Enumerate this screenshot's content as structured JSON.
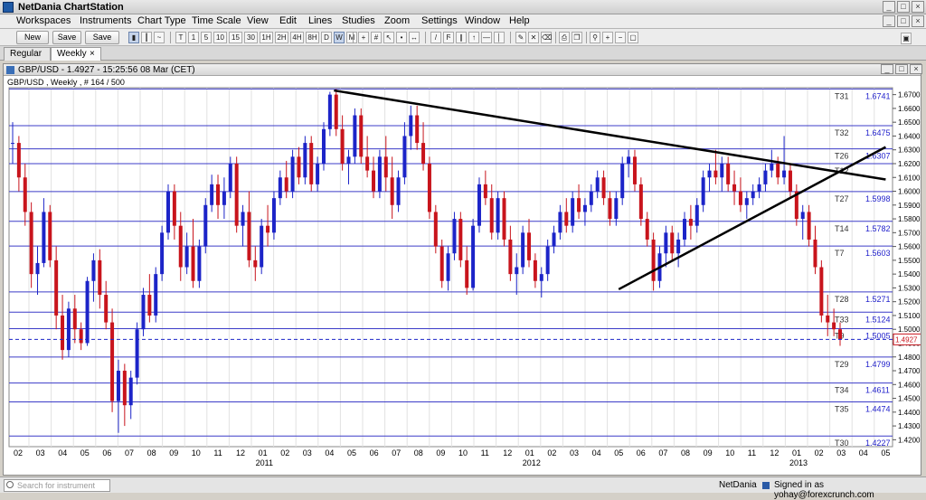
{
  "app": {
    "title": "NetDania ChartStation"
  },
  "window_buttons": [
    "_",
    "□",
    "×"
  ],
  "menu": [
    "Workspaces",
    "Instruments",
    "Chart Type",
    "Time Scale",
    "View",
    "Edit",
    "Lines",
    "Studies",
    "Zoom",
    "Settings",
    "Window",
    "Help"
  ],
  "toolbar": {
    "new_label": "New",
    "save_label": "Save",
    "save_as_label": "Save as..",
    "timeframes": [
      "T",
      "1",
      "5",
      "10",
      "15",
      "30",
      "1H",
      "2H",
      "4H",
      "8H",
      "D",
      "W",
      "M"
    ],
    "active_timeframe": "W"
  },
  "tabs": [
    {
      "label": "Regular",
      "active": false
    },
    {
      "label": "Weekly",
      "active": true,
      "close": "×"
    }
  ],
  "chart_window": {
    "header": "GBP/USD - 1.4927 - 15:25:56  08 Mar (CET)",
    "subtitle": "GBP/USD , Weekly , # 164 / 500"
  },
  "chart_data": {
    "type": "candlestick",
    "instrument": "GBP/USD",
    "interval": "Weekly",
    "last_price": "1.4927",
    "ylim": [
      1.415,
      1.675
    ],
    "yticks": [
      "1.6700",
      "1.6600",
      "1.6500",
      "1.6400",
      "1.6300",
      "1.6200",
      "1.6100",
      "1.6000",
      "1.5900",
      "1.5800",
      "1.5700",
      "1.5600",
      "1.5500",
      "1.5400",
      "1.5300",
      "1.5200",
      "1.5100",
      "1.5000",
      "1.4900",
      "1.4800",
      "1.4700",
      "1.4600",
      "1.4500",
      "1.4400",
      "1.4300",
      "1.4200"
    ],
    "x_month_labels": [
      "02",
      "03",
      "04",
      "05",
      "06",
      "07",
      "08",
      "09",
      "10",
      "11",
      "12",
      "01",
      "02",
      "03",
      "04",
      "05",
      "06",
      "07",
      "08",
      "09",
      "10",
      "11",
      "12",
      "01",
      "02",
      "03",
      "04",
      "05",
      "06",
      "07",
      "08",
      "09",
      "10",
      "11",
      "12",
      "01",
      "02",
      "03",
      "04",
      "05"
    ],
    "x_year_labels": [
      {
        "label": "2011",
        "month_index": 11
      },
      {
        "label": "2012",
        "month_index": 23
      },
      {
        "label": "2013",
        "month_index": 35
      }
    ],
    "horizontal_levels": [
      {
        "tag": "T31",
        "value": 1.6741,
        "label": "1.6741"
      },
      {
        "tag": "T32",
        "value": 1.6475,
        "label": "1.6475"
      },
      {
        "tag": "T26",
        "value": 1.6307,
        "label": "1.6307"
      },
      {
        "tag": "T12",
        "value": 1.62,
        "label": ""
      },
      {
        "tag": "T27",
        "value": 1.5998,
        "label": "1.5998"
      },
      {
        "tag": "T14",
        "value": 1.5782,
        "label": "1.5782"
      },
      {
        "tag": "T7",
        "value": 1.5603,
        "label": "1.5603"
      },
      {
        "tag": "T28",
        "value": 1.5271,
        "label": "1.5271"
      },
      {
        "tag": "T33",
        "value": 1.5124,
        "label": "1.5124"
      },
      {
        "tag": "T9",
        "value": 1.5005,
        "label": "1.5005"
      },
      {
        "tag": "T29",
        "value": 1.4799,
        "label": "1.4799"
      },
      {
        "tag": "T34",
        "value": 1.4611,
        "label": "1.4611"
      },
      {
        "tag": "T35",
        "value": 1.4474,
        "label": "1.4474"
      },
      {
        "tag": "T30",
        "value": 1.4227,
        "label": "1.4227"
      }
    ],
    "trendlines": [
      {
        "name": "downtrend",
        "from": {
          "month_index": 14.2,
          "price": 1.673
        },
        "to": {
          "month_index": 39.0,
          "price": 1.6085
        }
      },
      {
        "name": "uptrend",
        "from": {
          "month_index": 27.0,
          "price": 1.529
        },
        "to": {
          "month_index": 39.0,
          "price": 1.632
        }
      }
    ],
    "candles": [
      [
        1.635,
        1.65,
        1.62,
        1.635
      ],
      [
        1.635,
        1.64,
        1.6,
        1.61
      ],
      [
        1.61,
        1.62,
        1.575,
        1.585
      ],
      [
        1.585,
        1.592,
        1.53,
        1.54
      ],
      [
        1.54,
        1.56,
        1.525,
        1.548
      ],
      [
        1.548,
        1.595,
        1.545,
        1.585
      ],
      [
        1.585,
        1.59,
        1.545,
        1.55
      ],
      [
        1.55,
        1.56,
        1.5,
        1.51
      ],
      [
        1.51,
        1.525,
        1.478,
        1.485
      ],
      [
        1.485,
        1.52,
        1.48,
        1.515
      ],
      [
        1.515,
        1.525,
        1.49,
        1.5
      ],
      [
        1.5,
        1.505,
        1.485,
        1.49
      ],
      [
        1.49,
        1.538,
        1.488,
        1.535
      ],
      [
        1.535,
        1.555,
        1.52,
        1.55
      ],
      [
        1.55,
        1.558,
        1.515,
        1.525
      ],
      [
        1.525,
        1.535,
        1.5,
        1.505
      ],
      [
        1.505,
        1.515,
        1.44,
        1.448
      ],
      [
        1.448,
        1.478,
        1.425,
        1.47
      ],
      [
        1.47,
        1.475,
        1.43,
        1.445
      ],
      [
        1.445,
        1.47,
        1.435,
        1.465
      ],
      [
        1.465,
        1.505,
        1.46,
        1.5
      ],
      [
        1.5,
        1.53,
        1.495,
        1.525
      ],
      [
        1.525,
        1.54,
        1.505,
        1.51
      ],
      [
        1.51,
        1.545,
        1.505,
        1.54
      ],
      [
        1.54,
        1.575,
        1.535,
        1.57
      ],
      [
        1.57,
        1.605,
        1.565,
        1.6
      ],
      [
        1.6,
        1.605,
        1.565,
        1.575
      ],
      [
        1.575,
        1.585,
        1.535,
        1.545
      ],
      [
        1.545,
        1.57,
        1.54,
        1.56
      ],
      [
        1.56,
        1.58,
        1.53,
        1.535
      ],
      [
        1.535,
        1.565,
        1.53,
        1.56
      ],
      [
        1.56,
        1.595,
        1.555,
        1.59
      ],
      [
        1.59,
        1.612,
        1.585,
        1.605
      ],
      [
        1.605,
        1.612,
        1.58,
        1.59
      ],
      [
        1.59,
        1.61,
        1.58,
        1.6
      ],
      [
        1.6,
        1.625,
        1.595,
        1.62
      ],
      [
        1.62,
        1.625,
        1.57,
        1.575
      ],
      [
        1.575,
        1.59,
        1.56,
        1.585
      ],
      [
        1.585,
        1.6,
        1.545,
        1.55
      ],
      [
        1.55,
        1.56,
        1.535,
        1.545
      ],
      [
        1.545,
        1.58,
        1.54,
        1.575
      ],
      [
        1.575,
        1.59,
        1.56,
        1.57
      ],
      [
        1.57,
        1.6,
        1.565,
        1.595
      ],
      [
        1.595,
        1.615,
        1.59,
        1.61
      ],
      [
        1.61,
        1.622,
        1.595,
        1.6
      ],
      [
        1.6,
        1.63,
        1.595,
        1.625
      ],
      [
        1.625,
        1.632,
        1.605,
        1.61
      ],
      [
        1.61,
        1.64,
        1.605,
        1.635
      ],
      [
        1.635,
        1.64,
        1.6,
        1.605
      ],
      [
        1.605,
        1.625,
        1.6,
        1.62
      ],
      [
        1.62,
        1.65,
        1.615,
        1.645
      ],
      [
        1.645,
        1.672,
        1.64,
        1.67
      ],
      [
        1.67,
        1.674,
        1.64,
        1.645
      ],
      [
        1.645,
        1.655,
        1.615,
        1.62
      ],
      [
        1.62,
        1.63,
        1.605,
        1.625
      ],
      [
        1.625,
        1.66,
        1.62,
        1.655
      ],
      [
        1.655,
        1.66,
        1.62,
        1.625
      ],
      [
        1.625,
        1.64,
        1.61,
        1.615
      ],
      [
        1.615,
        1.625,
        1.595,
        1.6
      ],
      [
        1.6,
        1.63,
        1.595,
        1.625
      ],
      [
        1.625,
        1.64,
        1.6,
        1.61
      ],
      [
        1.61,
        1.625,
        1.58,
        1.59
      ],
      [
        1.59,
        1.615,
        1.585,
        1.61
      ],
      [
        1.61,
        1.65,
        1.605,
        1.64
      ],
      [
        1.64,
        1.662,
        1.63,
        1.655
      ],
      [
        1.655,
        1.662,
        1.63,
        1.635
      ],
      [
        1.635,
        1.65,
        1.615,
        1.62
      ],
      [
        1.62,
        1.625,
        1.58,
        1.585
      ],
      [
        1.585,
        1.59,
        1.555,
        1.56
      ],
      [
        1.56,
        1.565,
        1.53,
        1.535
      ],
      [
        1.535,
        1.56,
        1.528,
        1.555
      ],
      [
        1.555,
        1.585,
        1.55,
        1.58
      ],
      [
        1.58,
        1.585,
        1.545,
        1.55
      ],
      [
        1.55,
        1.56,
        1.525,
        1.53
      ],
      [
        1.53,
        1.58,
        1.528,
        1.575
      ],
      [
        1.575,
        1.61,
        1.57,
        1.605
      ],
      [
        1.605,
        1.615,
        1.59,
        1.595
      ],
      [
        1.595,
        1.605,
        1.565,
        1.57
      ],
      [
        1.57,
        1.6,
        1.565,
        1.595
      ],
      [
        1.595,
        1.6,
        1.56,
        1.565
      ],
      [
        1.565,
        1.575,
        1.535,
        1.54
      ],
      [
        1.54,
        1.555,
        1.525,
        1.545
      ],
      [
        1.545,
        1.575,
        1.54,
        1.57
      ],
      [
        1.57,
        1.58,
        1.545,
        1.55
      ],
      [
        1.55,
        1.555,
        1.53,
        1.535
      ],
      [
        1.535,
        1.545,
        1.523,
        1.54
      ],
      [
        1.54,
        1.565,
        1.535,
        1.56
      ],
      [
        1.56,
        1.575,
        1.555,
        1.57
      ],
      [
        1.57,
        1.59,
        1.565,
        1.585
      ],
      [
        1.585,
        1.595,
        1.57,
        1.575
      ],
      [
        1.575,
        1.6,
        1.57,
        1.595
      ],
      [
        1.595,
        1.605,
        1.58,
        1.585
      ],
      [
        1.585,
        1.595,
        1.575,
        1.59
      ],
      [
        1.59,
        1.605,
        1.585,
        1.6
      ],
      [
        1.6,
        1.615,
        1.595,
        1.61
      ],
      [
        1.61,
        1.615,
        1.59,
        1.595
      ],
      [
        1.595,
        1.6,
        1.575,
        1.58
      ],
      [
        1.58,
        1.6,
        1.575,
        1.595
      ],
      [
        1.595,
        1.625,
        1.59,
        1.62
      ],
      [
        1.62,
        1.63,
        1.61,
        1.625
      ],
      [
        1.625,
        1.63,
        1.6,
        1.605
      ],
      [
        1.605,
        1.61,
        1.575,
        1.58
      ],
      [
        1.58,
        1.585,
        1.56,
        1.565
      ],
      [
        1.565,
        1.57,
        1.528,
        1.535
      ],
      [
        1.535,
        1.56,
        1.53,
        1.555
      ],
      [
        1.555,
        1.575,
        1.545,
        1.57
      ],
      [
        1.57,
        1.575,
        1.55,
        1.555
      ],
      [
        1.555,
        1.57,
        1.545,
        1.565
      ],
      [
        1.565,
        1.585,
        1.56,
        1.58
      ],
      [
        1.58,
        1.59,
        1.565,
        1.575
      ],
      [
        1.575,
        1.595,
        1.57,
        1.59
      ],
      [
        1.59,
        1.615,
        1.585,
        1.61
      ],
      [
        1.61,
        1.62,
        1.6,
        1.615
      ],
      [
        1.615,
        1.63,
        1.605,
        1.61
      ],
      [
        1.61,
        1.625,
        1.6,
        1.62
      ],
      [
        1.62,
        1.625,
        1.6,
        1.605
      ],
      [
        1.605,
        1.615,
        1.59,
        1.6
      ],
      [
        1.6,
        1.61,
        1.585,
        1.59
      ],
      [
        1.59,
        1.6,
        1.58,
        1.595
      ],
      [
        1.595,
        1.605,
        1.59,
        1.6
      ],
      [
        1.6,
        1.61,
        1.595,
        1.605
      ],
      [
        1.605,
        1.62,
        1.6,
        1.615
      ],
      [
        1.615,
        1.63,
        1.61,
        1.62
      ],
      [
        1.62,
        1.625,
        1.605,
        1.61
      ],
      [
        1.61,
        1.64,
        1.605,
        1.615
      ],
      [
        1.615,
        1.62,
        1.595,
        1.6
      ],
      [
        1.6,
        1.605,
        1.575,
        1.58
      ],
      [
        1.58,
        1.59,
        1.565,
        1.585
      ],
      [
        1.585,
        1.59,
        1.56,
        1.565
      ],
      [
        1.565,
        1.575,
        1.54,
        1.545
      ],
      [
        1.545,
        1.55,
        1.505,
        1.51
      ],
      [
        1.51,
        1.525,
        1.495,
        1.505
      ],
      [
        1.505,
        1.515,
        1.495,
        1.5
      ],
      [
        1.5,
        1.505,
        1.488,
        1.4927
      ]
    ]
  },
  "status": {
    "search_placeholder": "Search for instrument",
    "brand": "NetDania",
    "signed_in": "Signed in as yohay@forexcrunch.com"
  }
}
